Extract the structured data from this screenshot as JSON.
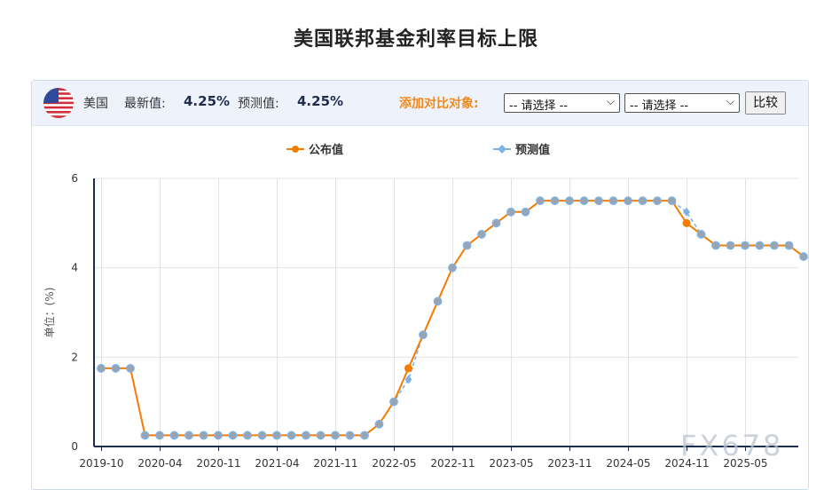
{
  "page": {
    "title": "美国联邦基金利率目标上限"
  },
  "header": {
    "flag_icon": "us-flag-icon",
    "country": "美国",
    "latest_label": "最新值:",
    "latest_value": "4.25%",
    "forecast_label": "预测值:",
    "forecast_value": "4.25%",
    "compare_label": "添加对比对象:",
    "select1": "-- 请选择 --",
    "select2": "-- 请选择 --",
    "compare_button": "比较"
  },
  "watermark": "FX678",
  "colors": {
    "published": "#f57c00",
    "forecast": "#7eb2e6",
    "axis": "#1f2d4d",
    "accent": "#f08a1c"
  },
  "chart_data": {
    "type": "line",
    "title": "",
    "xlabel": "",
    "ylabel": "单位：(%)",
    "ylim": [
      0,
      6
    ],
    "yticks": [
      "0",
      "2",
      "4",
      "6"
    ],
    "grid": true,
    "legend_position": "top-center",
    "xtick_labels": [
      "2019-10",
      "2020-04",
      "2020-11",
      "2021-04",
      "2021-11",
      "2022-05",
      "2022-11",
      "2023-05",
      "2023-11",
      "2024-05",
      "2024-11",
      "2025-05"
    ],
    "series": [
      {
        "name": "公布值",
        "values": [
          1.75,
          1.75,
          1.75,
          0.25,
          0.25,
          0.25,
          0.25,
          0.25,
          0.25,
          0.25,
          0.25,
          0.25,
          0.25,
          0.25,
          0.25,
          0.25,
          0.25,
          0.25,
          0.25,
          0.5,
          1.0,
          1.75,
          2.5,
          3.25,
          4.0,
          4.5,
          4.75,
          5.0,
          5.25,
          5.25,
          5.5,
          5.5,
          5.5,
          5.5,
          5.5,
          5.5,
          5.5,
          5.5,
          5.5,
          5.5,
          5.0,
          4.75,
          4.5,
          4.5,
          4.5,
          4.5,
          4.5,
          4.5,
          4.25
        ]
      },
      {
        "name": "预测值",
        "values": [
          1.75,
          1.75,
          1.75,
          0.25,
          0.25,
          0.25,
          0.25,
          0.25,
          0.25,
          0.25,
          0.25,
          0.25,
          0.25,
          0.25,
          0.25,
          0.25,
          0.25,
          0.25,
          0.25,
          0.5,
          1.0,
          1.5,
          2.5,
          3.25,
          4.0,
          4.5,
          4.75,
          5.0,
          5.25,
          5.25,
          5.5,
          5.5,
          5.5,
          5.5,
          5.5,
          5.5,
          5.5,
          5.5,
          5.5,
          5.5,
          5.25,
          4.75,
          4.5,
          4.5,
          4.5,
          4.5,
          4.5,
          4.5,
          4.25
        ]
      }
    ]
  }
}
